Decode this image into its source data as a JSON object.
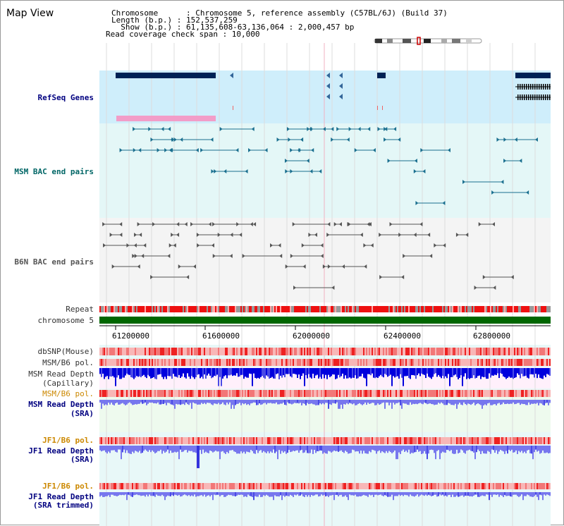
{
  "view_title": "Map View",
  "info": {
    "chromosome_line": "Chromosome      : Chromosome 5, reference assembly (C57BL/6J) (Build 37)",
    "length_line": "Length (b.p.) : 152,537,259",
    "show_line": "  Show (b.p.) : 61,135,608-63,136,064 : 2,000,457 bp",
    "coverage_line": "Read coverage check span : 10,000"
  },
  "tracks": {
    "refseq": "RefSeq Genes",
    "msm_bac": "MSM BAC end pairs",
    "b6n_bac": "B6N BAC end pairs",
    "repeat": "Repeat",
    "chromosome": "chromosome 5",
    "dbsnp": "dbSNP(Mouse)",
    "msm_b6_pol_1": "MSM/B6 pol.",
    "msm_read_depth_cap_1": "MSM Read Depth",
    "msm_read_depth_cap_2": "(Capillary)",
    "msm_b6_pol_2": "MSM/B6 pol.",
    "msm_read_depth_sra_1": "MSM Read Depth",
    "msm_read_depth_sra_2": "(SRA)",
    "jf1_b6_pol_1": "JF1/B6 pol.",
    "jf1_read_depth_sra_1": "JF1 Read Depth",
    "jf1_read_depth_sra_2": "(SRA)",
    "jf1_b6_pol_2": "JF1/B6 pol.",
    "jf1_read_depth_trim_1": "JF1 Read Depth",
    "jf1_read_depth_trim_2": "(SRA trimmed)"
  },
  "axis_ticks": [
    "61200000",
    "61600000",
    "62000000",
    "62400000",
    "62800000"
  ],
  "colors": {
    "label_blue": "#000080",
    "label_teal": "#006666",
    "label_orange": "#cc8800",
    "label_gray": "#555555",
    "refseq_bg": "#cfeefb",
    "msm_bg": "#e4f7f7",
    "b6n_bg": "#f4f4f4",
    "gene_dark": "#002255",
    "chromosome_bar": "#006600",
    "depth_blue": "#0000dd",
    "depth_light": "#7777ee"
  }
}
